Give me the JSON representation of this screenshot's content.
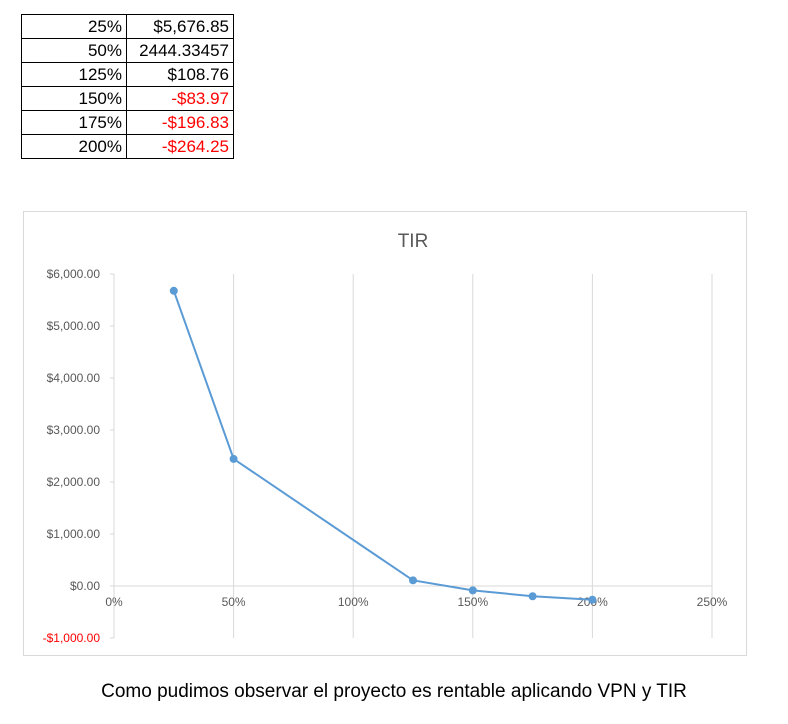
{
  "table": {
    "rows": [
      {
        "rate": "25%",
        "value": "$5,676.85",
        "negative": false
      },
      {
        "rate": "50%",
        "value": "2444.33457",
        "negative": false
      },
      {
        "rate": "125%",
        "value": "$108.76",
        "negative": false
      },
      {
        "rate": "150%",
        "value": "-$83.97",
        "negative": true
      },
      {
        "rate": "175%",
        "value": "-$196.83",
        "negative": true
      },
      {
        "rate": "200%",
        "value": "-$264.25",
        "negative": true
      }
    ]
  },
  "chart_data": {
    "type": "scatter",
    "title": "TIR",
    "xlabel": "",
    "ylabel": "",
    "x": [
      25,
      50,
      125,
      150,
      175,
      200
    ],
    "y": [
      5676.85,
      2444.33457,
      108.76,
      -83.97,
      -196.83,
      -264.25
    ],
    "xlim": [
      0,
      250
    ],
    "ylim": [
      -1000,
      6000
    ],
    "x_ticks": [
      0,
      50,
      100,
      150,
      200,
      250
    ],
    "x_tick_labels": [
      "0%",
      "50%",
      "100%",
      "150%",
      "200%",
      "250%"
    ],
    "y_ticks": [
      6000,
      5000,
      4000,
      3000,
      2000,
      1000,
      0,
      -1000
    ],
    "y_tick_labels": [
      "$6,000.00",
      "$5,000.00",
      "$4,000.00",
      "$3,000.00",
      "$2,000.00",
      "$1,000.00",
      "$0.00",
      "-$1,000.00"
    ],
    "lines": "straight with markers",
    "grid": "vertical",
    "legend": "none",
    "colors": {
      "series": "#5b9bd5",
      "negative_label": "#ff0000",
      "grid": "#d9d9d9",
      "axis_text": "#595959"
    }
  },
  "caption": "Como pudimos observar el proyecto es rentable aplicando VPN y TIR"
}
